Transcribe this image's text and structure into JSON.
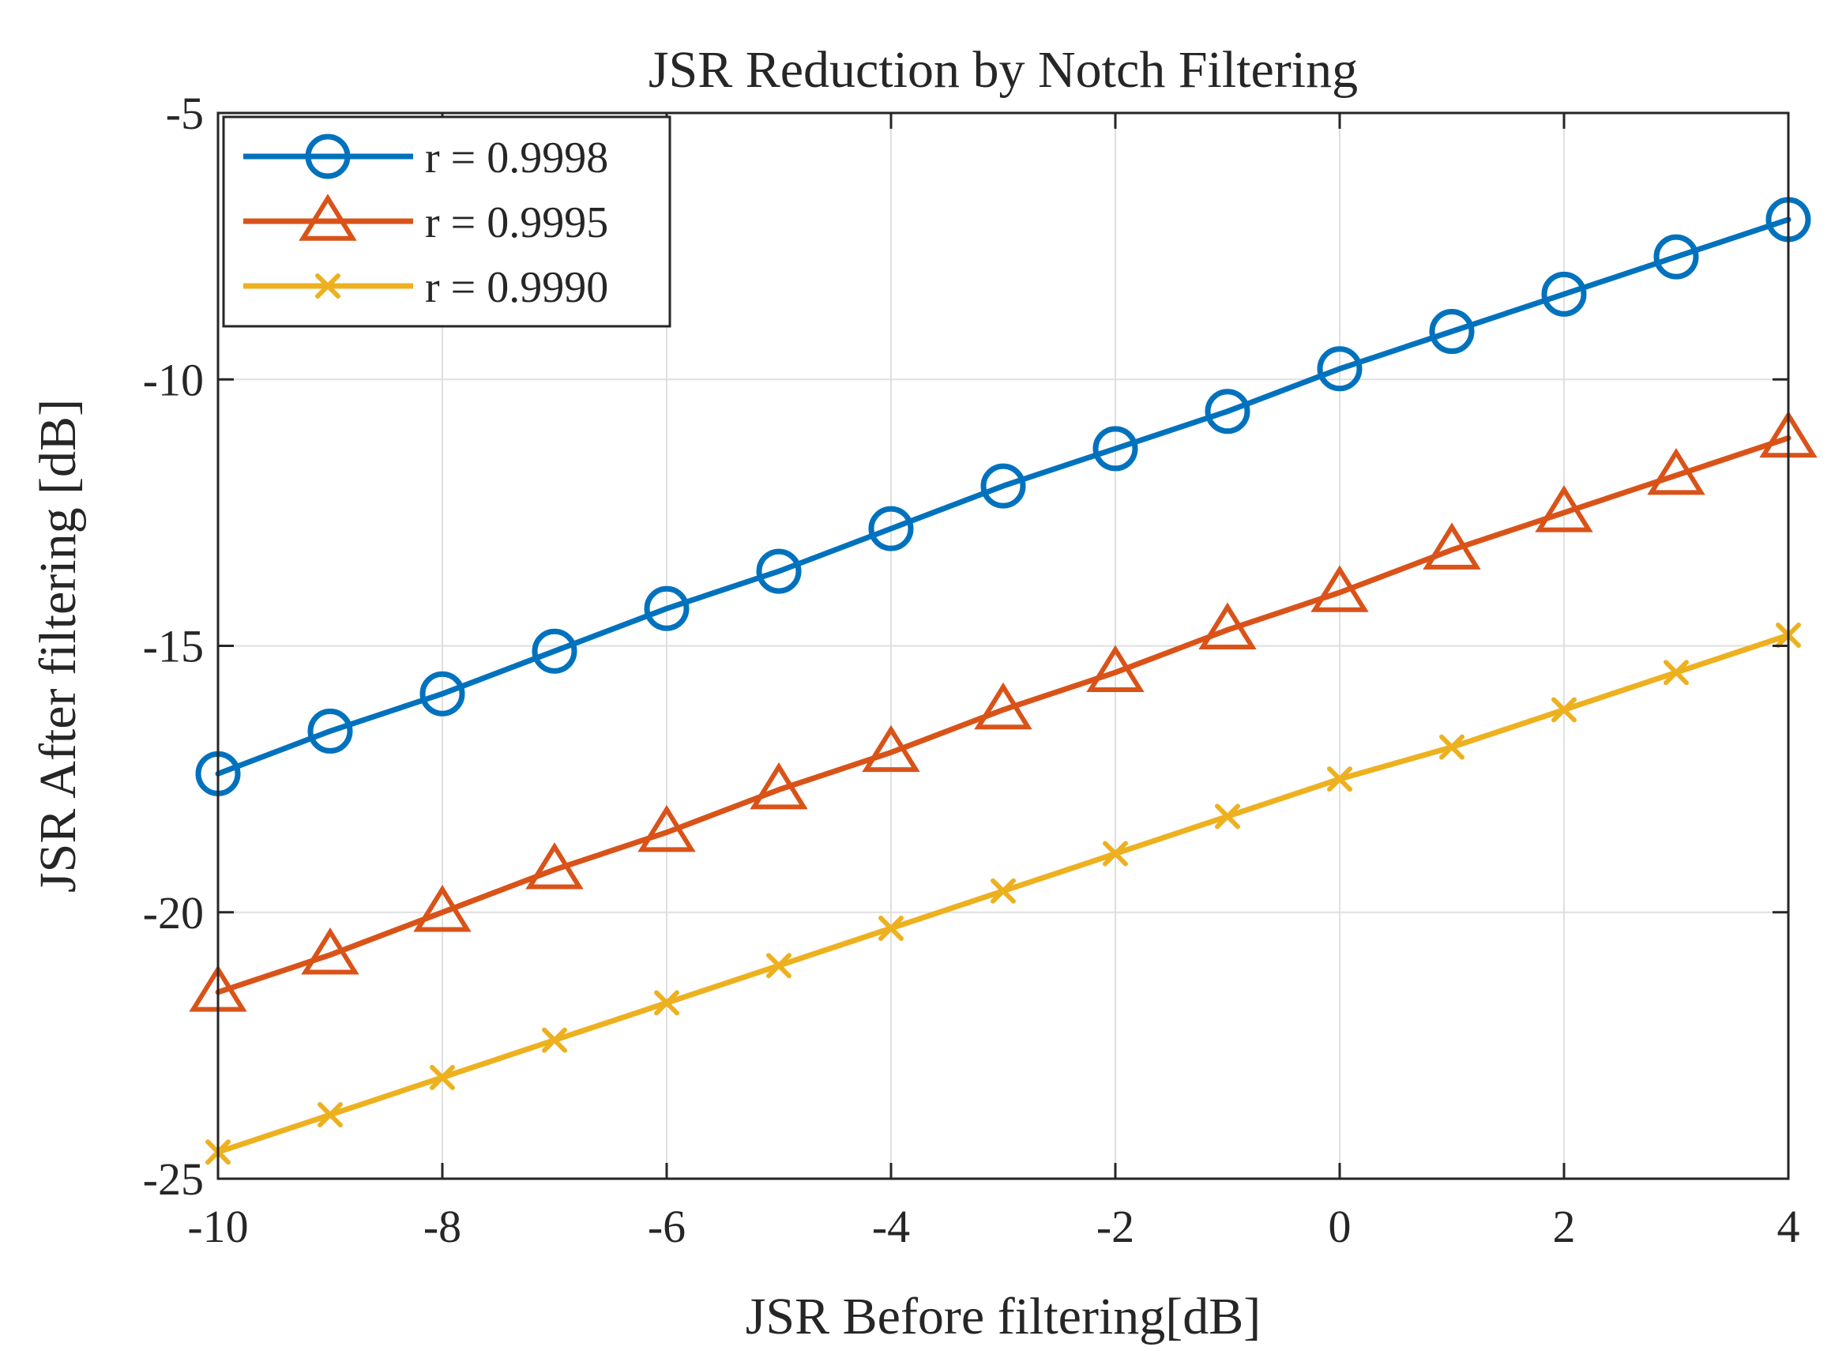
{
  "chart_data": {
    "type": "line",
    "title": "JSR Reduction by Notch Filtering",
    "xlabel": "JSR Before filtering[dB]",
    "ylabel": "JSR After filtering [dB]",
    "xlim": [
      -10,
      4
    ],
    "ylim": [
      -25,
      -5
    ],
    "xticks": [
      -10,
      -8,
      -6,
      -4,
      -2,
      0,
      2,
      4
    ],
    "yticks": [
      -25,
      -20,
      -15,
      -10,
      -5
    ],
    "grid": true,
    "legend_position": "top-left",
    "x": [
      -10,
      -9,
      -8,
      -7,
      -6,
      -5,
      -4,
      -3,
      -2,
      -1,
      0,
      1,
      2,
      3,
      4
    ],
    "series": [
      {
        "name": "r = 0.9998",
        "color": "#0072BD",
        "marker": "circle",
        "values": [
          -17.4,
          -16.6,
          -15.9,
          -15.1,
          -14.3,
          -13.6,
          -12.8,
          -12.0,
          -11.3,
          -10.6,
          -9.8,
          -9.1,
          -8.4,
          -7.7,
          -7.0
        ]
      },
      {
        "name": "r = 0.9995",
        "color": "#D95319",
        "marker": "triangle",
        "values": [
          -21.5,
          -20.8,
          -20.0,
          -19.2,
          -18.5,
          -17.7,
          -17.0,
          -16.2,
          -15.5,
          -14.7,
          -14.0,
          -13.2,
          -12.5,
          -11.8,
          -11.1
        ]
      },
      {
        "name": "r = 0.9990",
        "color": "#EDB120",
        "marker": "x",
        "values": [
          -24.5,
          -23.8,
          -23.1,
          -22.4,
          -21.7,
          -21.0,
          -20.3,
          -19.6,
          -18.9,
          -18.2,
          -17.5,
          -16.9,
          -16.2,
          -15.5,
          -14.8
        ]
      }
    ]
  }
}
